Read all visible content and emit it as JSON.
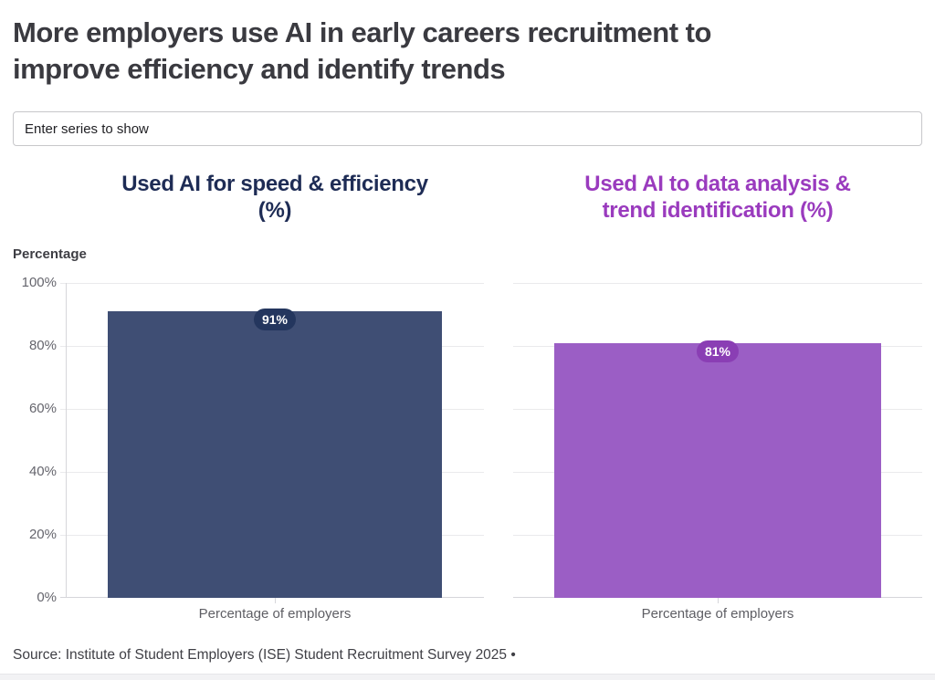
{
  "filter_input": {
    "placeholder": "Enter series to show"
  },
  "chart_data": {
    "type": "bar",
    "title": "More employers use AI in early careers recruitment to improve efficiency and identify trends",
    "title_lines": [
      "More employers use AI in early careers recruitment to",
      "improve efficiency and identify trends"
    ],
    "ylabel": "Percentage",
    "ylim": [
      0,
      100
    ],
    "yticks": [
      "100%",
      "80%",
      "60%",
      "40%",
      "20%",
      "0%"
    ],
    "grid": true,
    "legend": "none",
    "source": "Source: Institute of Student Employers (ISE) Student Recruitment Survey 2025 •",
    "panels": [
      {
        "title": "Used AI for speed & efficiency (%)",
        "title_lines": [
          "Used AI for speed & efficiency",
          "(%)"
        ],
        "title_color": "#1E2C55",
        "categories": [
          "Percentage of employers"
        ],
        "values": [
          91
        ],
        "value_labels": [
          "91%"
        ],
        "bar_color": "#3F4E74",
        "label_pill_color": "#24365E"
      },
      {
        "title": "Used AI to data analysis & trend identification (%)",
        "title_lines": [
          "Used AI to data analysis &",
          "trend identification (%)"
        ],
        "title_color": "#9A3BBE",
        "categories": [
          "Percentage of employers"
        ],
        "values": [
          81
        ],
        "value_labels": [
          "81%"
        ],
        "bar_color": "#9B5EC5",
        "label_pill_color": "#8A3EB4"
      }
    ]
  }
}
